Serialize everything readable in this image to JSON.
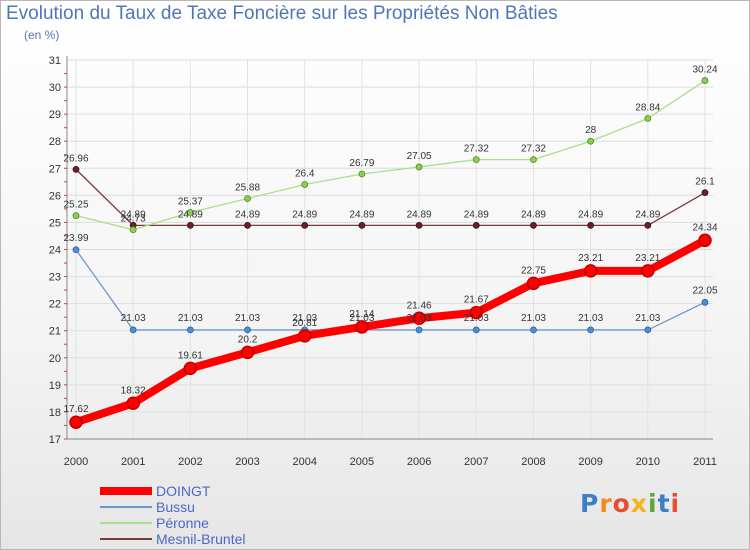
{
  "chart_data": {
    "type": "line",
    "title": "Evolution du Taux de Taxe Foncière sur les Propriétés Non Bâties",
    "subtitle": "(en %)",
    "xlabel": "",
    "ylabel": "",
    "x": [
      "2000",
      "2001",
      "2002",
      "2003",
      "2004",
      "2005",
      "2006",
      "2007",
      "2008",
      "2009",
      "2010",
      "2011"
    ],
    "ylim": [
      17,
      31
    ],
    "yticks": [
      "17",
      "18",
      "19",
      "20",
      "21",
      "22",
      "23",
      "24",
      "25",
      "26",
      "27",
      "28",
      "29",
      "30",
      "31"
    ],
    "legend_position": "bottom-left",
    "series": [
      {
        "name": "DOINGT",
        "color": "#ff0000",
        "values": [
          17.62,
          18.32,
          19.61,
          20.2,
          20.81,
          21.14,
          21.46,
          21.67,
          22.75,
          23.21,
          23.21,
          24.34
        ],
        "labels": [
          "17.62",
          "18.32",
          "19.61",
          "20.2",
          "20.81",
          "21.14",
          "21.46",
          "21.67",
          "22.75",
          "23.21",
          "23.21",
          "24.34"
        ]
      },
      {
        "name": "Bussu",
        "color": "#6a98cc",
        "values": [
          23.99,
          21.03,
          21.03,
          21.03,
          21.03,
          21.03,
          21.03,
          21.03,
          21.03,
          21.03,
          21.03,
          22.05
        ],
        "labels": [
          "23.99",
          "21.03",
          "21.03",
          "21.03",
          "21.03",
          "21.03",
          "21.03",
          "21.03",
          "21.03",
          "21.03",
          "21.03",
          "22.05"
        ]
      },
      {
        "name": "Péronne",
        "color": "#a8e08a",
        "values": [
          25.25,
          24.73,
          25.37,
          25.88,
          26.4,
          26.79,
          27.05,
          27.32,
          27.32,
          28,
          28.84,
          30.24
        ],
        "labels": [
          "25.25",
          "24.73",
          "25.37",
          "25.88",
          "26.4",
          "26.79",
          "27.05",
          "27.32",
          "27.32",
          "28",
          "28.84",
          "30.24"
        ]
      },
      {
        "name": "Mesnil-Bruntel",
        "color": "#7a3b3b",
        "values": [
          26.96,
          24.89,
          24.89,
          24.89,
          24.89,
          24.89,
          24.89,
          24.89,
          24.89,
          24.89,
          24.89,
          26.1
        ],
        "labels": [
          "26.96",
          "24.89",
          "24.89",
          "24.89",
          "24.89",
          "24.89",
          "24.89",
          "24.89",
          "24.89",
          "24.89",
          "24.89",
          "26.1"
        ]
      }
    ]
  },
  "logo": {
    "text": "Proxiti",
    "colors": [
      "#3d7fc4",
      "#f08c1e",
      "#e94f2e",
      "#f2b51d",
      "#5aa83a",
      "#3d7fc4",
      "#e94f2e"
    ]
  }
}
